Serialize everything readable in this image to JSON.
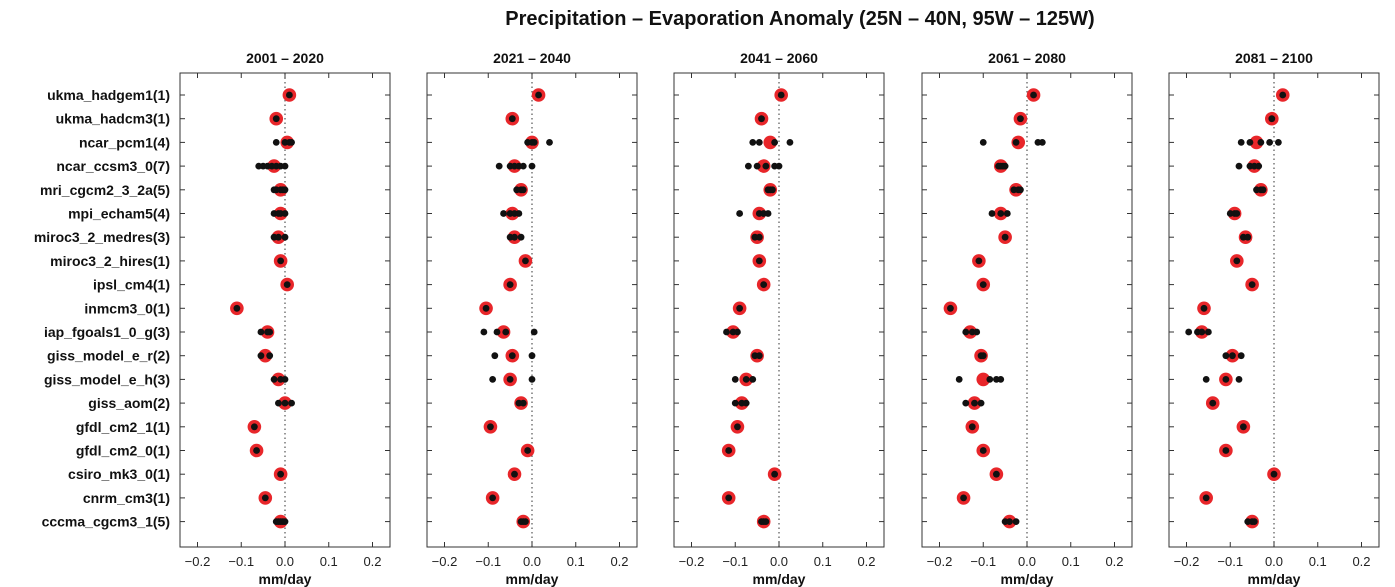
{
  "title": "Precipitation – Evaporation Anomaly (25N – 40N, 95W – 125W)",
  "colors": {
    "mean": "#e8262a",
    "member": "#111111",
    "frame": "#333333",
    "zero_line": "#555555"
  },
  "chart_data": {
    "type": "scatter",
    "title": "Precipitation – Evaporation Anomaly (25N – 40N, 95W – 125W)",
    "xlabel": "mm/day",
    "xlim": [
      -0.24,
      0.24
    ],
    "xticks": [
      -0.2,
      -0.1,
      0.0,
      0.1,
      0.2
    ],
    "xtick_labels": [
      "−0.2",
      "−0.1",
      "0.0",
      "0.1",
      "0.2"
    ],
    "zero_line": "dotted",
    "grid": false,
    "models": [
      "ukma_hadgem1(1)",
      "ukma_hadcm3(1)",
      "ncar_pcm1(4)",
      "ncar_ccsm3_0(7)",
      "mri_cgcm2_3_2a(5)",
      "mpi_echam5(4)",
      "miroc3_2_medres(3)",
      "miroc3_2_hires(1)",
      "ipsl_cm4(1)",
      "inmcm3_0(1)",
      "iap_fgoals1_0_g(3)",
      "giss_model_e_r(2)",
      "giss_model_e_h(3)",
      "giss_aom(2)",
      "gfdl_cm2_1(1)",
      "gfdl_cm2_0(1)",
      "csiro_mk3_0(1)",
      "cnrm_cm3(1)",
      "cccma_cgcm3_1(5)"
    ],
    "panels": [
      {
        "title": "2001 – 2020",
        "means": [
          0.01,
          -0.02,
          0.005,
          -0.025,
          -0.01,
          -0.01,
          -0.015,
          -0.01,
          0.005,
          -0.11,
          -0.04,
          -0.045,
          -0.015,
          0.0,
          -0.07,
          -0.065,
          -0.01,
          -0.045,
          -0.01
        ],
        "members": [
          [
            0.01
          ],
          [
            -0.02
          ],
          [
            -0.02,
            0.0,
            0.01,
            0.015
          ],
          [
            -0.06,
            -0.05,
            -0.04,
            -0.03,
            -0.02,
            -0.01,
            0.0
          ],
          [
            -0.025,
            -0.02,
            -0.01,
            -0.005,
            0.0
          ],
          [
            -0.025,
            -0.015,
            -0.01,
            0.0
          ],
          [
            -0.025,
            -0.015,
            0.0
          ],
          [
            -0.01
          ],
          [
            0.005
          ],
          [
            -0.11
          ],
          [
            -0.055,
            -0.04,
            -0.035
          ],
          [
            -0.055,
            -0.035
          ],
          [
            -0.025,
            -0.01,
            0.0
          ],
          [
            -0.015,
            0.0,
            0.015
          ],
          [
            -0.07
          ],
          [
            -0.065
          ],
          [
            -0.01
          ],
          [
            -0.045
          ],
          [
            -0.02,
            -0.015,
            -0.01,
            -0.005,
            0.0
          ]
        ]
      },
      {
        "title": "2021 – 2040",
        "means": [
          0.015,
          -0.045,
          0.0,
          -0.04,
          -0.025,
          -0.045,
          -0.04,
          -0.015,
          -0.05,
          -0.105,
          -0.065,
          -0.045,
          -0.05,
          -0.025,
          -0.095,
          -0.01,
          -0.04,
          -0.09,
          -0.02
        ],
        "members": [
          [
            0.015
          ],
          [
            -0.045
          ],
          [
            -0.01,
            0.0,
            0.005,
            0.04
          ],
          [
            -0.075,
            -0.05,
            -0.04,
            -0.03,
            -0.02,
            0.0
          ],
          [
            -0.035,
            -0.025,
            -0.02
          ],
          [
            -0.065,
            -0.05,
            -0.04,
            -0.03
          ],
          [
            -0.05,
            -0.04,
            -0.025
          ],
          [
            -0.015
          ],
          [
            -0.05
          ],
          [
            -0.105
          ],
          [
            -0.11,
            -0.08,
            -0.06,
            0.005
          ],
          [
            -0.085,
            -0.045,
            0.0
          ],
          [
            -0.09,
            -0.05,
            0.0
          ],
          [
            -0.03,
            -0.02
          ],
          [
            -0.095
          ],
          [
            -0.01
          ],
          [
            -0.04
          ],
          [
            -0.09
          ],
          [
            -0.025,
            -0.02,
            -0.015
          ]
        ]
      },
      {
        "title": "2041 – 2060",
        "means": [
          0.005,
          -0.04,
          -0.02,
          -0.035,
          -0.02,
          -0.045,
          -0.05,
          -0.045,
          -0.035,
          -0.09,
          -0.105,
          -0.05,
          -0.075,
          -0.085,
          -0.095,
          -0.115,
          -0.01,
          -0.115,
          -0.035
        ],
        "members": [
          [
            0.005
          ],
          [
            -0.04
          ],
          [
            -0.06,
            -0.045,
            -0.01,
            0.025
          ],
          [
            -0.07,
            -0.05,
            -0.03,
            -0.01,
            0.0
          ],
          [
            -0.025,
            -0.02,
            -0.015
          ],
          [
            -0.09,
            -0.045,
            -0.035,
            -0.025
          ],
          [
            -0.055,
            -0.045
          ],
          [
            -0.045
          ],
          [
            -0.035
          ],
          [
            -0.09
          ],
          [
            -0.12,
            -0.105,
            -0.095
          ],
          [
            -0.055,
            -0.045
          ],
          [
            -0.1,
            -0.075,
            -0.06
          ],
          [
            -0.1,
            -0.085,
            -0.075
          ],
          [
            -0.095
          ],
          [
            -0.115
          ],
          [
            -0.01
          ],
          [
            -0.115
          ],
          [
            -0.04,
            -0.035,
            -0.03
          ]
        ]
      },
      {
        "title": "2061 – 2080",
        "means": [
          0.015,
          -0.015,
          -0.02,
          -0.06,
          -0.025,
          -0.06,
          -0.05,
          -0.11,
          -0.1,
          -0.175,
          -0.13,
          -0.105,
          -0.1,
          -0.12,
          -0.125,
          -0.1,
          -0.07,
          -0.145,
          -0.04
        ],
        "members": [
          [
            0.015
          ],
          [
            -0.015
          ],
          [
            -0.1,
            -0.025,
            0.025,
            0.035
          ],
          [
            -0.065,
            -0.06,
            -0.055,
            -0.05
          ],
          [
            -0.03,
            -0.02,
            -0.015
          ],
          [
            -0.08,
            -0.06,
            -0.045
          ],
          [
            -0.05
          ],
          [
            -0.11
          ],
          [
            -0.1
          ],
          [
            -0.175
          ],
          [
            -0.14,
            -0.125,
            -0.115
          ],
          [
            -0.105,
            -0.1
          ],
          [
            -0.155,
            -0.085,
            -0.07,
            -0.06
          ],
          [
            -0.14,
            -0.12,
            -0.105
          ],
          [
            -0.125
          ],
          [
            -0.1
          ],
          [
            -0.07
          ],
          [
            -0.145
          ],
          [
            -0.05,
            -0.04,
            -0.025
          ]
        ]
      },
      {
        "title": "2081 – 2100",
        "means": [
          0.02,
          -0.005,
          -0.04,
          -0.045,
          -0.03,
          -0.09,
          -0.065,
          -0.085,
          -0.05,
          -0.16,
          -0.165,
          -0.095,
          -0.11,
          -0.14,
          -0.07,
          -0.11,
          0.0,
          -0.155,
          -0.05
        ],
        "members": [
          [
            0.02
          ],
          [
            -0.005
          ],
          [
            -0.075,
            -0.055,
            -0.03,
            -0.01,
            0.01
          ],
          [
            -0.08,
            -0.055,
            -0.045,
            -0.035
          ],
          [
            -0.04,
            -0.03,
            -0.025
          ],
          [
            -0.1,
            -0.09,
            -0.085
          ],
          [
            -0.07,
            -0.06
          ],
          [
            -0.085
          ],
          [
            -0.05
          ],
          [
            -0.16
          ],
          [
            -0.195,
            -0.175,
            -0.165,
            -0.15
          ],
          [
            -0.11,
            -0.095,
            -0.075
          ],
          [
            -0.155,
            -0.11,
            -0.08
          ],
          [
            -0.14
          ],
          [
            -0.07
          ],
          [
            -0.11
          ],
          [
            0.0
          ],
          [
            -0.155
          ],
          [
            -0.06,
            -0.05,
            -0.045
          ]
        ]
      }
    ]
  }
}
